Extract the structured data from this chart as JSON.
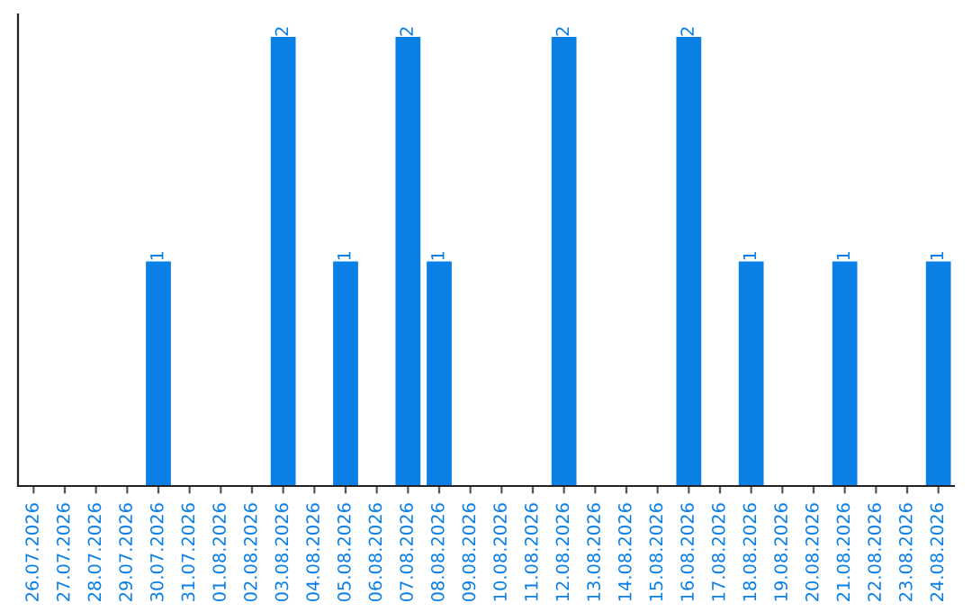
{
  "chart_data": {
    "type": "bar",
    "categories": [
      "26.07.2026",
      "27.07.2026",
      "28.07.2026",
      "29.07.2026",
      "30.07.2026",
      "31.07.2026",
      "01.08.2026",
      "02.08.2026",
      "03.08.2026",
      "04.08.2026",
      "05.08.2026",
      "06.08.2026",
      "07.08.2026",
      "08.08.2026",
      "09.08.2026",
      "10.08.2026",
      "11.08.2026",
      "12.08.2026",
      "13.08.2026",
      "14.08.2026",
      "15.08.2026",
      "16.08.2026",
      "17.08.2026",
      "18.08.2026",
      "19.08.2026",
      "20.08.2026",
      "21.08.2026",
      "22.08.2026",
      "23.08.2026",
      "24.08.2026"
    ],
    "values": [
      0,
      0,
      0,
      0,
      1,
      0,
      0,
      0,
      2,
      0,
      1,
      0,
      2,
      1,
      0,
      0,
      0,
      2,
      0,
      0,
      0,
      2,
      0,
      1,
      0,
      0,
      1,
      0,
      0,
      1
    ],
    "value_labels": [
      null,
      null,
      null,
      null,
      "1",
      null,
      null,
      null,
      "2",
      null,
      "1",
      null,
      "2",
      "1",
      null,
      null,
      null,
      "2",
      null,
      null,
      null,
      "2",
      null,
      "1",
      null,
      null,
      "1",
      null,
      null,
      "1"
    ],
    "color": "#0a7fe6",
    "tick_labels": "x",
    "grid": false,
    "legend": false
  }
}
